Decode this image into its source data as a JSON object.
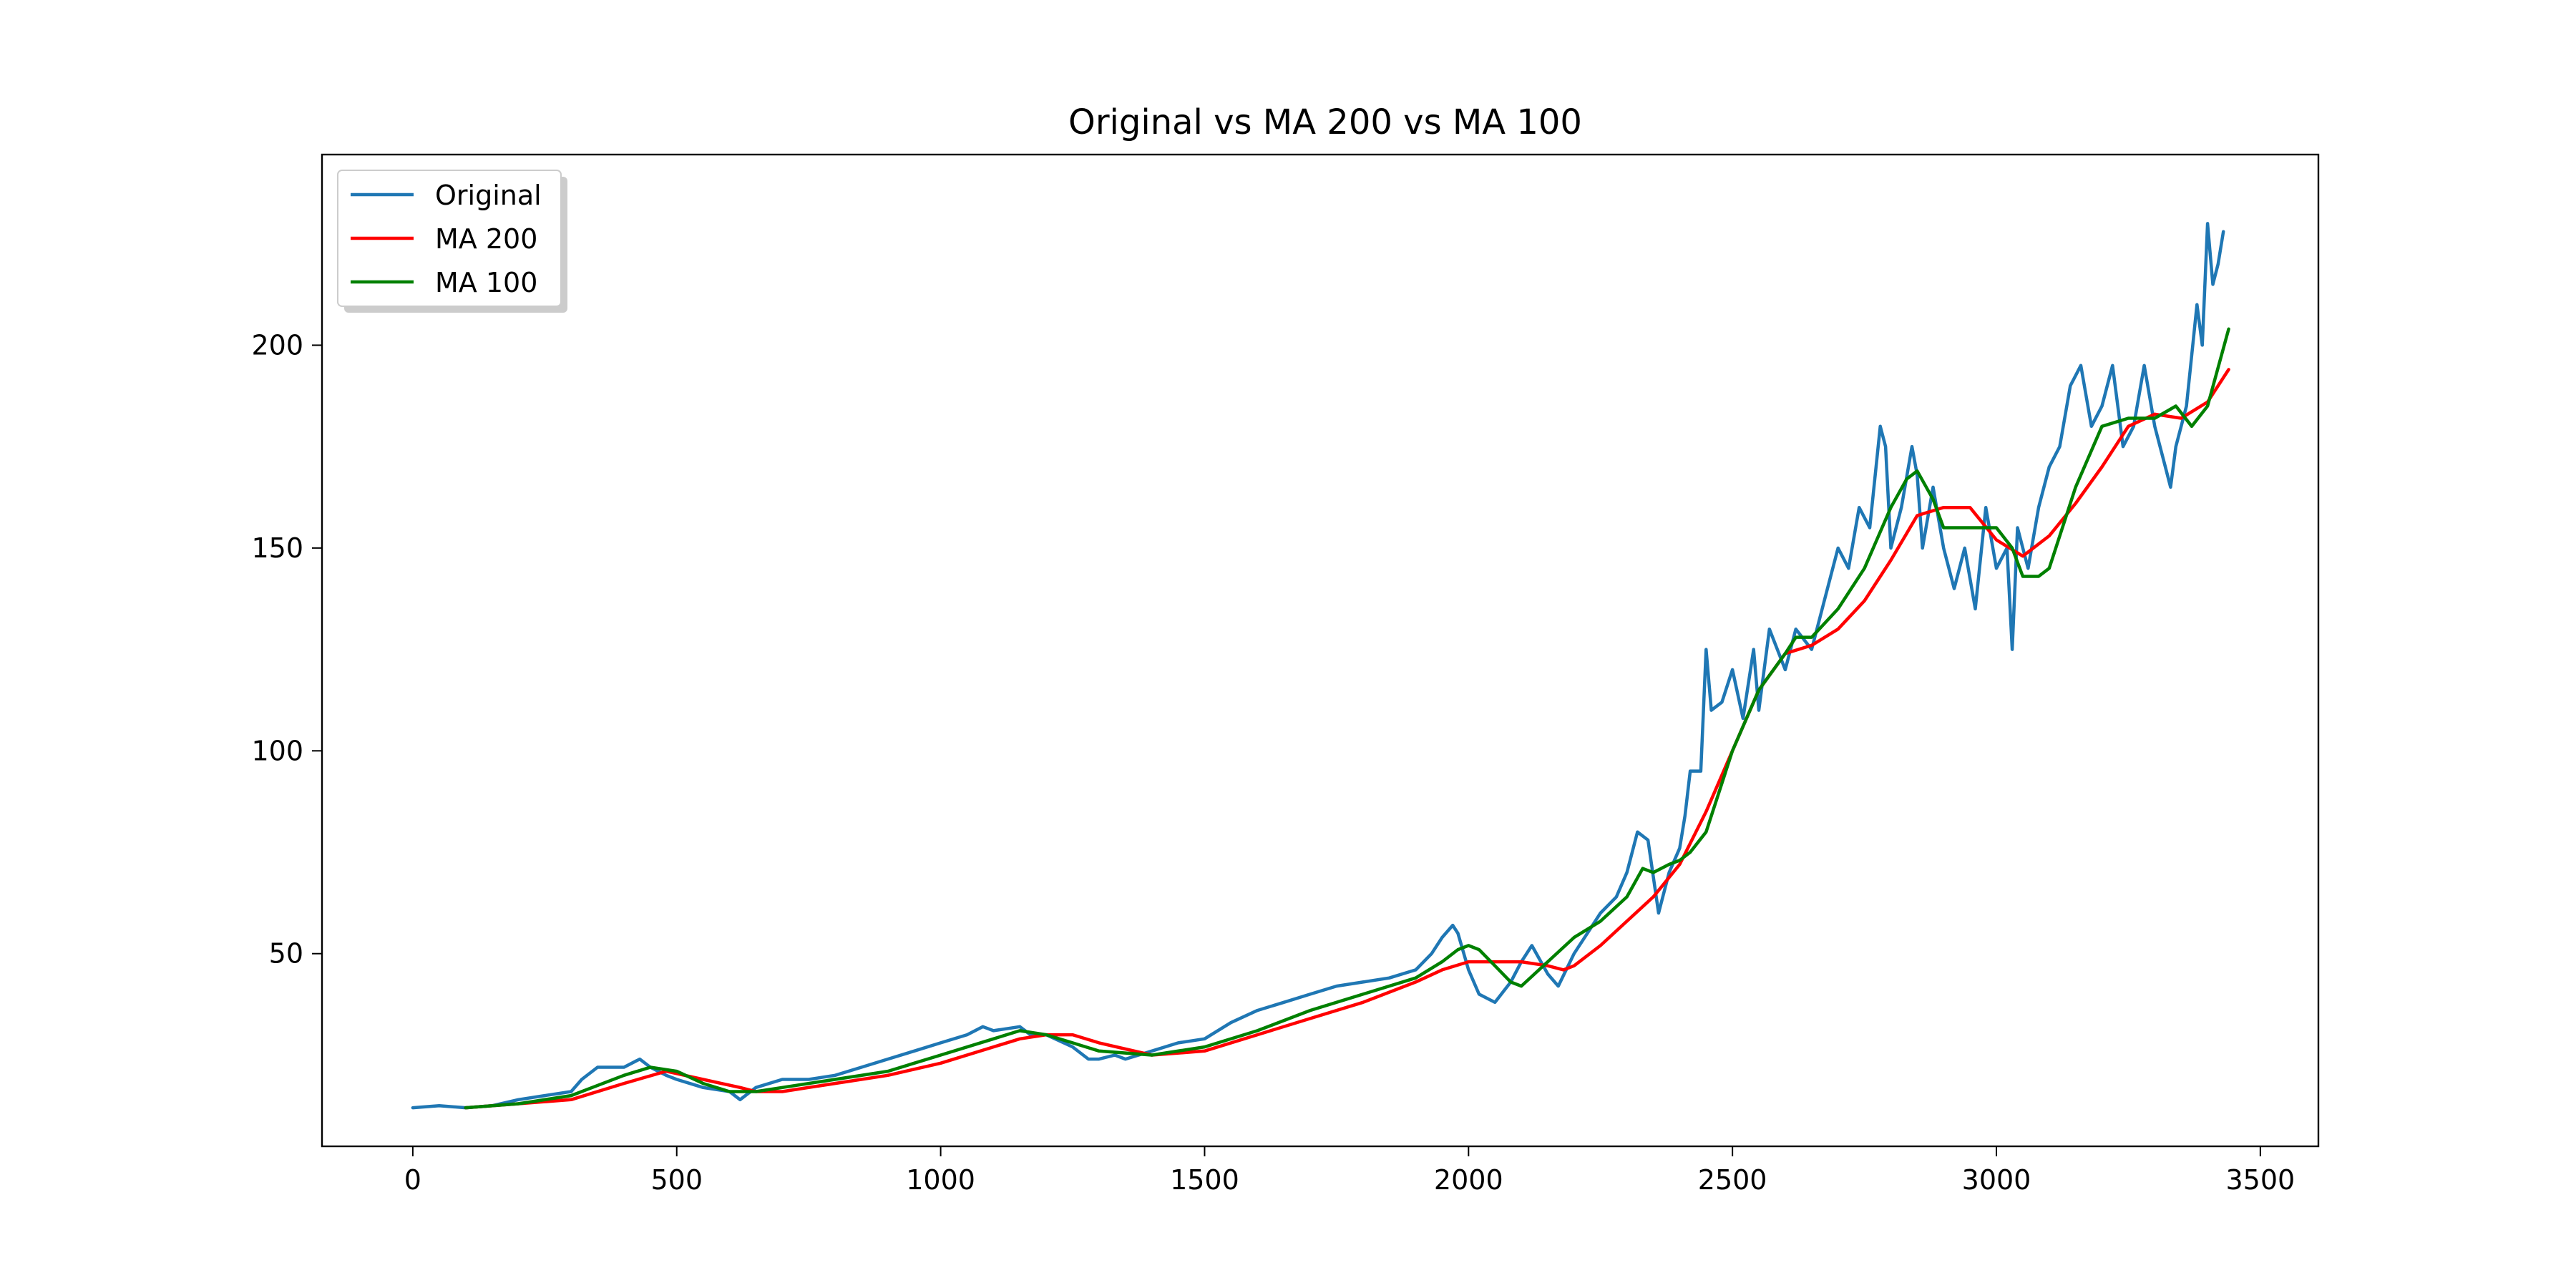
{
  "chart_data": {
    "type": "line",
    "title": "Original vs MA 200 vs MA 100",
    "xlabel": "",
    "ylabel": "",
    "xlim": [
      -172,
      3610
    ],
    "ylim": [
      2.5,
      247
    ],
    "xticks": [
      0,
      500,
      1000,
      1500,
      2000,
      2500,
      3000,
      3500
    ],
    "yticks": [
      50,
      100,
      150,
      200
    ],
    "legend": {
      "position": "top-left",
      "entries": [
        "Original",
        "MA 200",
        "MA 100"
      ]
    },
    "grid": false,
    "series": [
      {
        "name": "Original",
        "color": "#1f77b4",
        "x": [
          0,
          50,
          100,
          150,
          200,
          250,
          300,
          320,
          350,
          400,
          430,
          450,
          480,
          500,
          550,
          600,
          620,
          650,
          700,
          750,
          800,
          850,
          900,
          950,
          1000,
          1050,
          1080,
          1100,
          1150,
          1170,
          1200,
          1250,
          1280,
          1300,
          1330,
          1350,
          1400,
          1450,
          1500,
          1550,
          1600,
          1650,
          1700,
          1750,
          1800,
          1850,
          1900,
          1930,
          1950,
          1970,
          1980,
          2000,
          2020,
          2050,
          2080,
          2100,
          2120,
          2150,
          2170,
          2200,
          2230,
          2250,
          2280,
          2300,
          2320,
          2340,
          2360,
          2380,
          2400,
          2410,
          2420,
          2440,
          2450,
          2460,
          2480,
          2500,
          2520,
          2540,
          2550,
          2570,
          2600,
          2620,
          2650,
          2680,
          2700,
          2720,
          2740,
          2760,
          2780,
          2790,
          2800,
          2820,
          2840,
          2850,
          2860,
          2880,
          2900,
          2920,
          2940,
          2960,
          2980,
          3000,
          3020,
          3030,
          3040,
          3060,
          3080,
          3100,
          3120,
          3140,
          3160,
          3180,
          3200,
          3220,
          3240,
          3260,
          3280,
          3300,
          3320,
          3330,
          3340,
          3360,
          3380,
          3390,
          3400,
          3410,
          3420,
          3430
        ],
        "y": [
          12,
          12.5,
          12,
          12.5,
          14,
          15,
          16,
          19,
          22,
          22,
          24,
          22,
          20,
          19,
          17,
          16,
          14,
          17,
          19,
          19,
          20,
          22,
          24,
          26,
          28,
          30,
          32,
          31,
          32,
          30,
          30,
          27,
          24,
          24,
          25,
          24,
          26,
          28,
          29,
          33,
          36,
          38,
          40,
          42,
          43,
          44,
          46,
          50,
          54,
          57,
          55,
          46,
          40,
          38,
          43,
          48,
          52,
          45,
          42,
          50,
          56,
          60,
          64,
          70,
          80,
          78,
          60,
          70,
          76,
          84,
          95,
          95,
          125,
          110,
          112,
          120,
          108,
          125,
          110,
          130,
          120,
          130,
          125,
          140,
          150,
          145,
          160,
          155,
          180,
          175,
          150,
          160,
          175,
          168,
          150,
          165,
          150,
          140,
          150,
          135,
          160,
          145,
          150,
          125,
          155,
          145,
          160,
          170,
          175,
          190,
          195,
          180,
          185,
          195,
          175,
          180,
          195,
          180,
          170,
          165,
          175,
          185,
          210,
          200,
          230,
          215,
          220,
          228
        ]
      },
      {
        "name": "MA 200",
        "color": "#ff0000",
        "x": [
          100,
          200,
          300,
          400,
          480,
          550,
          620,
          650,
          700,
          800,
          900,
          1000,
          1100,
          1150,
          1200,
          1250,
          1300,
          1400,
          1500,
          1600,
          1700,
          1800,
          1900,
          1950,
          2000,
          2100,
          2150,
          2180,
          2200,
          2250,
          2300,
          2350,
          2400,
          2450,
          2500,
          2550,
          2600,
          2650,
          2700,
          2750,
          2800,
          2850,
          2900,
          2950,
          3000,
          3050,
          3100,
          3150,
          3200,
          3250,
          3300,
          3350,
          3400,
          3440
        ],
        "y": [
          12,
          13,
          14,
          18,
          21,
          19,
          17,
          16,
          16,
          18,
          20,
          23,
          27,
          29,
          30,
          30,
          28,
          25,
          26,
          30,
          34,
          38,
          43,
          46,
          48,
          48,
          47,
          46,
          47,
          52,
          58,
          64,
          72,
          85,
          100,
          115,
          124,
          126,
          130,
          137,
          147,
          158,
          160,
          160,
          152,
          148,
          153,
          161,
          170,
          180,
          183,
          182,
          186,
          194
        ]
      },
      {
        "name": "MA 100",
        "color": "#008000",
        "x": [
          100,
          200,
          300,
          400,
          450,
          500,
          550,
          600,
          650,
          700,
          800,
          900,
          1000,
          1100,
          1150,
          1200,
          1250,
          1300,
          1400,
          1500,
          1600,
          1700,
          1800,
          1900,
          1950,
          1980,
          2000,
          2020,
          2050,
          2080,
          2100,
          2150,
          2200,
          2250,
          2300,
          2330,
          2350,
          2380,
          2400,
          2420,
          2450,
          2500,
          2550,
          2600,
          2620,
          2650,
          2700,
          2750,
          2800,
          2830,
          2850,
          2880,
          2900,
          2950,
          3000,
          3030,
          3050,
          3080,
          3100,
          3150,
          3200,
          3250,
          3300,
          3340,
          3370,
          3400,
          3440
        ],
        "y": [
          12,
          13,
          15,
          20,
          22,
          21,
          18,
          16,
          16,
          17,
          19,
          21,
          25,
          29,
          31,
          30,
          28,
          26,
          25,
          27,
          31,
          36,
          40,
          44,
          48,
          51,
          52,
          51,
          47,
          43,
          42,
          48,
          54,
          58,
          64,
          71,
          70,
          72,
          73,
          75,
          80,
          100,
          115,
          124,
          128,
          128,
          135,
          145,
          160,
          167,
          169,
          162,
          155,
          155,
          155,
          150,
          143,
          143,
          145,
          165,
          180,
          182,
          182,
          185,
          180,
          185,
          204
        ]
      }
    ]
  }
}
